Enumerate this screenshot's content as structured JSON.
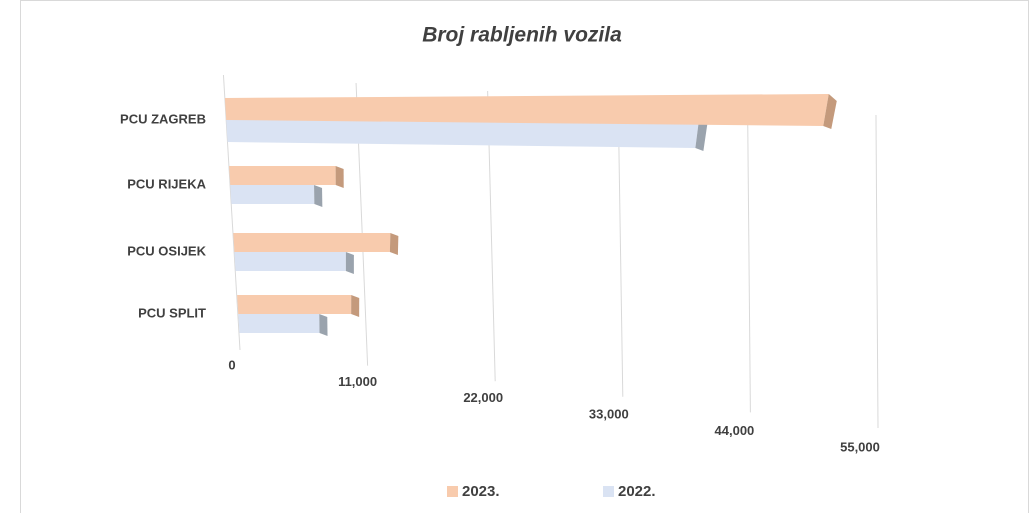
{
  "chart_data": {
    "type": "bar3d",
    "title": "Broj rabljenih vozila",
    "categories": [
      "PCU ZAGREB",
      "PCU RIJEKA",
      "PCU OSIJEK",
      "PCU SPLIT"
    ],
    "series": [
      {
        "name": "2023.",
        "color": "#f8cbad",
        "values": [
          52000,
          9600,
          14500,
          11000
        ]
      },
      {
        "name": "2022.",
        "color": "#dae3f3",
        "values": [
          41500,
          7700,
          10500,
          8000
        ]
      }
    ],
    "xlim": [
      0,
      55000
    ],
    "xticks": [
      {
        "value": 0,
        "label": "0"
      },
      {
        "value": 11000,
        "label": "11,000"
      },
      {
        "value": 22000,
        "label": "22,000"
      },
      {
        "value": 33000,
        "label": "33,000"
      },
      {
        "value": 44000,
        "label": "44,000"
      },
      {
        "value": 55000,
        "label": "55,000"
      }
    ],
    "grid": true
  }
}
